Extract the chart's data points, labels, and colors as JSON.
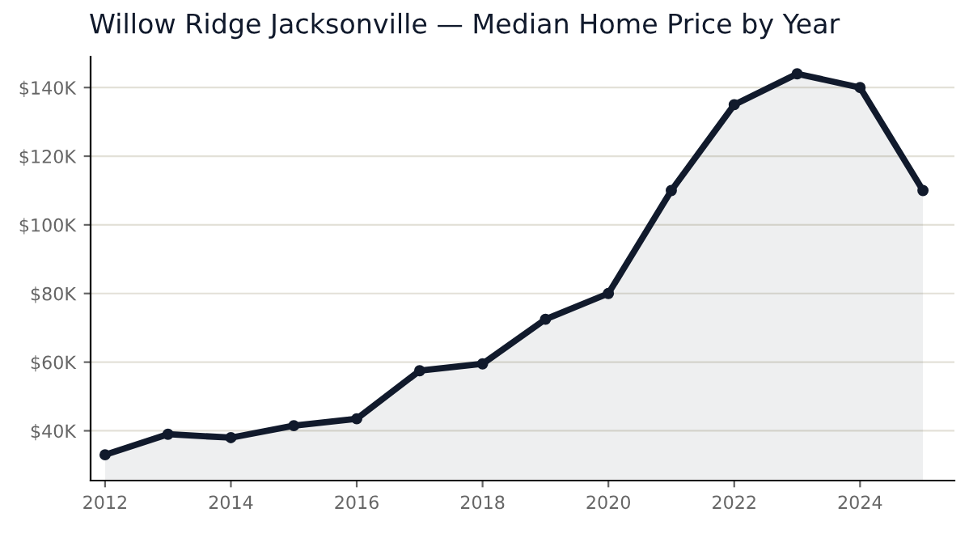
{
  "chart_data": {
    "type": "area",
    "title": "Willow Ridge Jacksonville — Median Home Price by Year",
    "x": [
      2012,
      2013,
      2014,
      2015,
      2016,
      2017,
      2018,
      2019,
      2020,
      2021,
      2022,
      2023,
      2024,
      2025
    ],
    "series": [
      {
        "color": "#111a2c",
        "values": [
          33000,
          39000,
          38000,
          41500,
          43500,
          57500,
          59500,
          72500,
          80000,
          110000,
          135000,
          144000,
          140000,
          110000
        ]
      }
    ],
    "xlim": [
      2011.77,
      2025.5
    ],
    "xticks": [
      2012,
      2014,
      2016,
      2018,
      2020,
      2022,
      2024
    ],
    "ylim": [
      25500,
      149000
    ],
    "yticks": [
      {
        "value": 40000,
        "label": "$40K"
      },
      {
        "value": 60000,
        "label": "$60K"
      },
      {
        "value": 80000,
        "label": "$80K"
      },
      {
        "value": 100000,
        "label": "$100K"
      },
      {
        "value": 120000,
        "label": "$120K"
      },
      {
        "value": 140000,
        "label": "$140K"
      }
    ],
    "grid": "y",
    "marker": "circle",
    "line_style": "solid"
  }
}
